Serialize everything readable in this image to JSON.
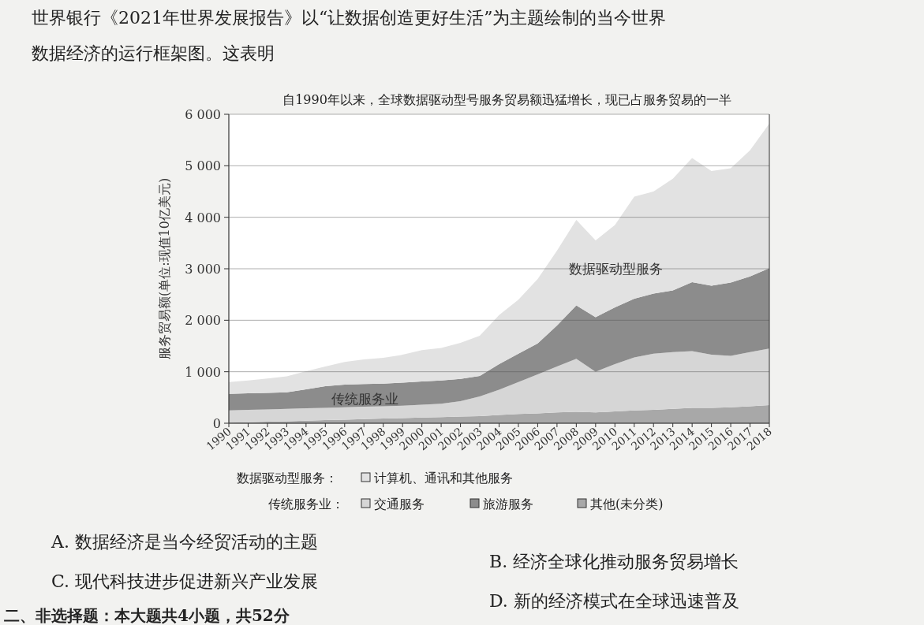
{
  "chart_data": {
    "type": "area",
    "stacked": true,
    "title": "自1990年以来，全球数据驱动型号服务贸易额迅猛增长，现已占服务贸易的一半",
    "ylabel": "服务贸易额(单位:现值10亿美元)",
    "categories": [
      "1990",
      "1991",
      "1992",
      "1993",
      "1994",
      "1995",
      "1996",
      "1997",
      "1998",
      "1999",
      "2000",
      "2001",
      "2002",
      "2003",
      "2004",
      "2005",
      "2006",
      "2007",
      "2008",
      "2009",
      "2010",
      "2011",
      "2012",
      "2013",
      "2014",
      "2015",
      "2016",
      "2017",
      "2018"
    ],
    "series": [
      {
        "name": "其他(未分类)",
        "color": "#a8a8a8",
        "values": [
          10,
          20,
          30,
          40,
          50,
          60,
          70,
          80,
          90,
          100,
          110,
          120,
          130,
          140,
          160,
          180,
          190,
          210,
          220,
          210,
          230,
          250,
          260,
          280,
          300,
          300,
          310,
          330,
          350
        ]
      },
      {
        "name": "交通服务",
        "color": "#d6d6d6",
        "values": [
          240,
          240,
          240,
          240,
          240,
          240,
          240,
          240,
          240,
          240,
          250,
          260,
          300,
          380,
          490,
          620,
          760,
          890,
          1030,
          790,
          920,
          1030,
          1090,
          1100,
          1100,
          1030,
          1000,
          1050,
          1100
        ]
      },
      {
        "name": "旅游服务",
        "color": "#8c8c8c",
        "values": [
          320,
          320,
          320,
          320,
          370,
          420,
          440,
          440,
          440,
          450,
          450,
          450,
          430,
          400,
          500,
          550,
          600,
          800,
          1040,
          1060,
          1100,
          1140,
          1170,
          1200,
          1340,
          1340,
          1420,
          1470,
          1560
        ]
      },
      {
        "name": "计算机、通讯和其他服务",
        "color": "#e2e2e2",
        "values": [
          230,
          250,
          280,
          310,
          350,
          380,
          440,
          480,
          500,
          540,
          610,
          630,
          700,
          780,
          950,
          1050,
          1250,
          1450,
          1660,
          1490,
          1600,
          1980,
          1980,
          2170,
          2410,
          2230,
          2220,
          2450,
          2810
        ]
      }
    ],
    "ylim": [
      0,
      6000
    ],
    "yticks": [
      0,
      {
        "value": 1000,
        "label": "1 000"
      },
      {
        "value": 2000,
        "label": "2 000"
      },
      {
        "value": 3000,
        "label": "3 000"
      },
      {
        "value": 4000,
        "label": "4 000"
      },
      {
        "value": 5000,
        "label": "5 000"
      },
      {
        "value": 6000,
        "label": "6 000"
      }
    ],
    "grid": "y",
    "legend": "bottom",
    "annotations": [
      "世界银行《2021年世界发展报告》以“让数据创造更好生活”为主题绘制的当今世界",
      "数据经济的运行框架图。这表明",
      "数据驱动型服务：",
      "传统服务业：",
      "数据驱动型服务",
      "传统服务业",
      "A. 数据经济是当今经贸活动的主题",
      "B. 经济全球化推动服务贸易增长",
      "C. 现代科技进步促进新兴产业发展",
      "D. 新的经济模式在全球迅速普及",
      "二、非选择题：本大题共4小题，共52分"
    ]
  }
}
